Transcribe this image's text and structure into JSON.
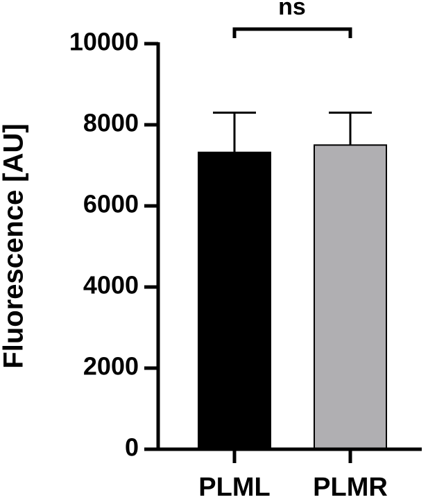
{
  "chart_data": {
    "type": "bar",
    "y_label": "Fluorescence [AU]",
    "categories": [
      "PLML",
      "PLMR"
    ],
    "values": [
      7320,
      7500
    ],
    "errors": [
      980,
      800
    ],
    "colors": [
      "#000000",
      "#b0afb2"
    ],
    "ylim": [
      0,
      10000
    ],
    "yticks": [
      0,
      2000,
      4000,
      6000,
      8000,
      10000
    ],
    "annotation": "ns"
  }
}
